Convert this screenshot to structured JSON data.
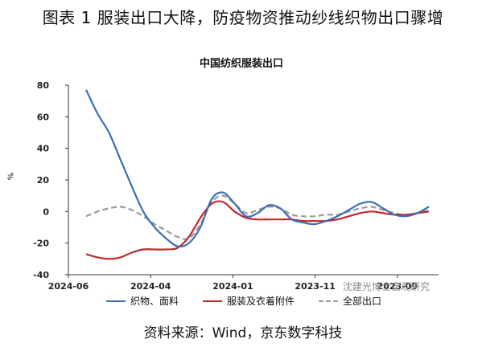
{
  "figure_title": "图表 1  服装出口大降，防疫物资推动纱线织物出口骤增",
  "source_text": "资料来源：Wind，京东数字科技",
  "watermark_text": "沈建光博士宏观研究",
  "chart_data": {
    "type": "line",
    "title": "中国纺织服装出口",
    "ylabel": "%",
    "xlabel": "",
    "ylim": [
      -40,
      80
    ],
    "yticks": [
      -40,
      -20,
      0,
      20,
      40,
      60,
      80
    ],
    "x_tick_labels": [
      "2024-06",
      "2024-04",
      "2024-01",
      "2023-11",
      "2023-09"
    ],
    "grid": false,
    "legend_position": "bottom",
    "series": [
      {
        "name": "织物、面料",
        "color": "#3d6eb5",
        "dash": "solid",
        "values": [
          77,
          62,
          50,
          33,
          16,
          0,
          -10,
          -17,
          -22,
          -20,
          -10,
          8,
          12,
          5,
          -3,
          -1,
          4,
          2,
          -5,
          -7,
          -8,
          -6,
          -3,
          1,
          5,
          6,
          2,
          -2,
          -3,
          -1,
          3
        ]
      },
      {
        "name": "服装及衣着附件",
        "color": "#c0282d",
        "dash": "solid",
        "values": [
          -27,
          -29,
          -30,
          -29,
          -26,
          -24,
          -24,
          -24,
          -23,
          -16,
          -4,
          5,
          6,
          0,
          -4,
          -5,
          -5,
          -5,
          -5,
          -6,
          -6,
          -6,
          -5,
          -3,
          -1,
          0,
          -1,
          -2,
          -2,
          -1,
          0
        ]
      },
      {
        "name": "全部出口",
        "color": "#9a9a9a",
        "dash": "dashed",
        "values": [
          -3,
          0,
          2,
          3,
          1,
          -3,
          -8,
          -12,
          -16,
          -17,
          -8,
          6,
          10,
          5,
          -1,
          1,
          3,
          2,
          -2,
          -3,
          -3,
          -2,
          -2,
          0,
          2,
          3,
          1,
          -1,
          -2,
          -1,
          1
        ]
      }
    ]
  }
}
